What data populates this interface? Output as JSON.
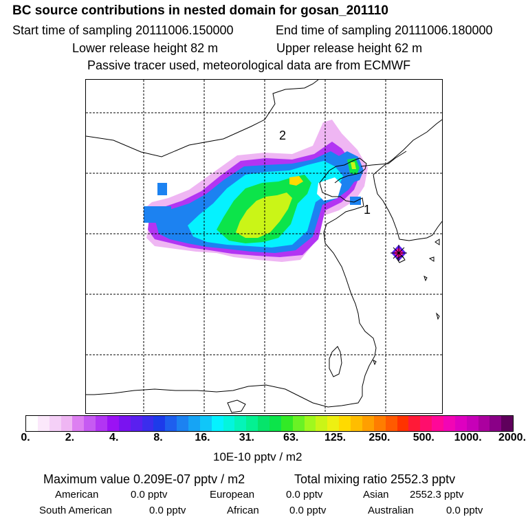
{
  "header": {
    "title": "BC  source contributions in nested domain for gosan_201110",
    "start_time": "Start time of sampling 20111006.150000",
    "end_time": "End time of sampling 20111006.180000",
    "lower_release": "Lower release height   82 m",
    "upper_release": "Upper release height   62 m",
    "note": "Passive tracer used, meteorological data are from ECMWF"
  },
  "map": {
    "labels": {
      "region_1": "1",
      "region_2": "2"
    },
    "receptor_marker": "gosan-receptor-marker",
    "colors": {
      "coast": "#000000",
      "grid": "#000000"
    }
  },
  "colorbar": {
    "tick_labels": [
      "0.",
      "2.",
      "4.",
      "8.",
      "16.",
      "31.",
      "63.",
      "125.",
      "250.",
      "500.",
      "1000.",
      "2000."
    ],
    "colors": [
      "#ffffff",
      "#fbe8fb",
      "#f5d0f7",
      "#efb6f3",
      "#dd7ff1",
      "#c65af2",
      "#b235f3",
      "#9b12f4",
      "#7a13f0",
      "#5a20ef",
      "#3b2ded",
      "#1d3bea",
      "#1e5fee",
      "#1c82f1",
      "#16a4f5",
      "#10c6f8",
      "#05f2ff",
      "#04f5dd",
      "#05f4b8",
      "#04f192",
      "#06e46b",
      "#0ce44a",
      "#32ea26",
      "#6af225",
      "#a0f81e",
      "#caf517",
      "#eef012",
      "#ffda00",
      "#ffbd00",
      "#ff9f00",
      "#ff7d00",
      "#ff5a00",
      "#ff3300",
      "#ff1a37",
      "#ff0e6c",
      "#ff0898",
      "#f205b5",
      "#de00c0",
      "#c700b8",
      "#ab009f",
      "#8a0087",
      "#5f005c"
    ],
    "units": "10E-10 pptv / m2"
  },
  "summary": {
    "max_value": "Maximum value  0.209E-07 pptv / m2",
    "total_mixing": "Total mixing ratio     2552.3 pptv",
    "regions": [
      {
        "name": "American",
        "value": "0.0 pptv"
      },
      {
        "name": "European",
        "value": "0.0 pptv"
      },
      {
        "name": "Asian",
        "value": "2552.3 pptv"
      },
      {
        "name": "South American",
        "value": "0.0 pptv"
      },
      {
        "name": "African",
        "value": "0.0 pptv"
      },
      {
        "name": "Australian",
        "value": "0.0 pptv"
      }
    ]
  }
}
